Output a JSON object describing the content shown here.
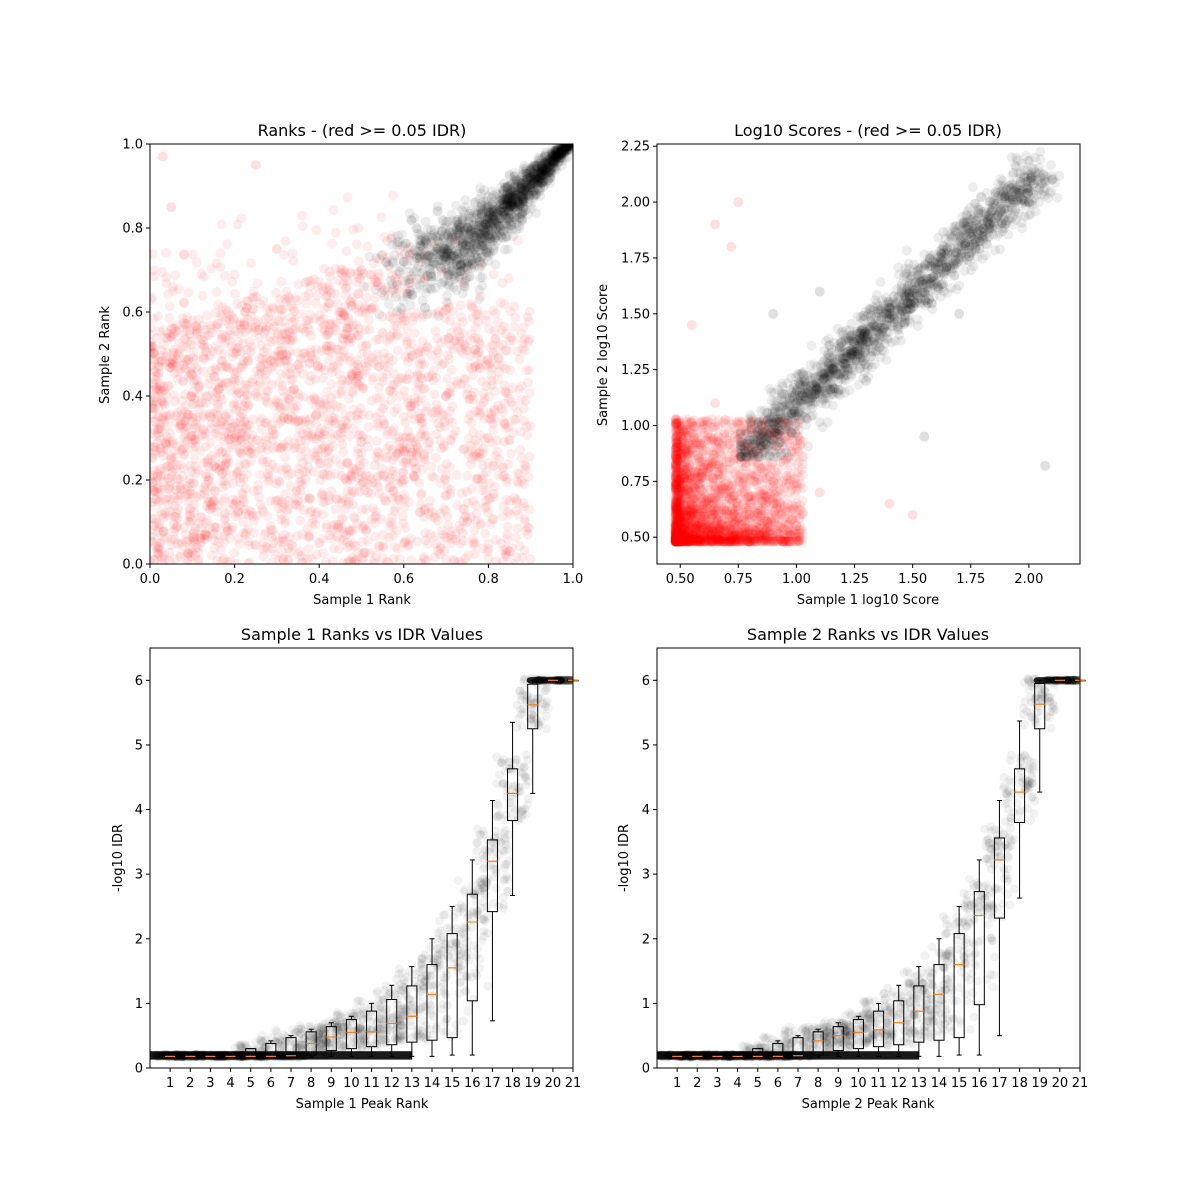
{
  "colors": {
    "significant": "#000000",
    "not_significant": "#ff0000",
    "median": "#ff7f0e",
    "box": "#000000"
  },
  "chart_data": [
    {
      "type": "scatter",
      "title": "Ranks - (red >= 0.05 IDR)",
      "xlabel": "Sample 1 Rank",
      "ylabel": "Sample 2 Rank",
      "xlim": [
        0,
        1
      ],
      "ylim": [
        0,
        1
      ],
      "xticks": [
        "0.0",
        "0.2",
        "0.4",
        "0.6",
        "0.8",
        "1.0"
      ],
      "yticks": [
        "0.0",
        "0.2",
        "0.4",
        "0.6",
        "0.8",
        "1.0"
      ],
      "grid": false,
      "series": [
        {
          "color": "not_significant",
          "points": [
            [
              0.05,
              0.85
            ],
            [
              0.1,
              0.45
            ],
            [
              0.2,
              0.3
            ],
            [
              0.35,
              0.34
            ],
            [
              0.45,
              0.6
            ],
            [
              0.6,
              0.2
            ],
            [
              0.75,
              0.1
            ],
            [
              0.85,
              0.03
            ],
            [
              0.3,
              0.75
            ],
            [
              0.55,
              0.55
            ],
            [
              0.7,
              0.4
            ],
            [
              0.15,
              0.15
            ],
            [
              0.25,
              0.95
            ],
            [
              0.03,
              0.97
            ],
            [
              0.5,
              0.7
            ],
            [
              0.65,
              0.68
            ],
            [
              0.8,
              0.3
            ],
            [
              0.4,
              0.05
            ]
          ]
        },
        {
          "color": "significant",
          "points": [
            [
              0.62,
              0.64
            ],
            [
              0.65,
              0.61
            ],
            [
              0.7,
              0.75
            ],
            [
              0.75,
              0.8
            ],
            [
              0.8,
              0.85
            ],
            [
              0.85,
              0.88
            ],
            [
              0.9,
              0.92
            ],
            [
              0.95,
              0.96
            ],
            [
              1.0,
              1.0
            ],
            [
              0.6,
              0.72
            ],
            [
              0.72,
              0.68
            ],
            [
              0.68,
              0.84
            ],
            [
              0.78,
              0.72
            ],
            [
              0.88,
              0.82
            ]
          ]
        }
      ]
    },
    {
      "type": "scatter",
      "title": "Log10 Scores - (red >= 0.05 IDR)",
      "xlabel": "Sample 1 log10 Score",
      "ylabel": "Sample 2 log10 Score",
      "xlim": [
        0.4,
        2.22
      ],
      "ylim": [
        0.38,
        2.26
      ],
      "xticks": [
        "0.50",
        "0.75",
        "1.00",
        "1.25",
        "1.50",
        "1.75",
        "2.00"
      ],
      "yticks": [
        "0.50",
        "0.75",
        "1.00",
        "1.25",
        "1.50",
        "1.75",
        "2.00",
        "2.25"
      ],
      "grid": false,
      "series": [
        {
          "color": "not_significant",
          "points": [
            [
              0.48,
              0.48
            ],
            [
              0.55,
              0.6
            ],
            [
              0.6,
              0.8
            ],
            [
              0.65,
              1.1
            ],
            [
              0.7,
              0.55
            ],
            [
              0.8,
              0.6
            ],
            [
              0.9,
              0.75
            ],
            [
              1.0,
              0.55
            ],
            [
              1.1,
              0.7
            ],
            [
              1.4,
              0.65
            ],
            [
              0.55,
              1.45
            ],
            [
              0.65,
              1.9
            ],
            [
              0.72,
              1.8
            ],
            [
              0.75,
              2.0
            ],
            [
              1.5,
              0.6
            ]
          ]
        },
        {
          "color": "significant",
          "points": [
            [
              0.78,
              0.88
            ],
            [
              0.85,
              1.0
            ],
            [
              1.0,
              1.1
            ],
            [
              1.2,
              1.3
            ],
            [
              1.4,
              1.5
            ],
            [
              1.6,
              1.7
            ],
            [
              1.8,
              1.85
            ],
            [
              2.0,
              2.0
            ],
            [
              2.1,
              2.1
            ],
            [
              0.9,
              1.5
            ],
            [
              1.1,
              1.6
            ],
            [
              1.3,
              1.2
            ],
            [
              1.7,
              1.5
            ],
            [
              2.07,
              0.82
            ],
            [
              1.55,
              0.95
            ]
          ]
        }
      ]
    },
    {
      "type": "box",
      "title": "Sample 1 Ranks vs IDR Values",
      "xlabel": "Sample 1 Peak Rank",
      "ylabel": "-log10 IDR",
      "ylim": [
        0,
        6.5
      ],
      "xticks": [
        "1",
        "2",
        "3",
        "4",
        "5",
        "6",
        "7",
        "8",
        "9",
        "10",
        "11",
        "12",
        "13",
        "14",
        "15",
        "16",
        "17",
        "18",
        "19",
        "20",
        "21"
      ],
      "yticks": [
        "0",
        "1",
        "2",
        "3",
        "4",
        "5",
        "6"
      ],
      "grid": false,
      "boxes": [
        {
          "q1": 0.17,
          "median": 0.18,
          "q3": 0.2,
          "whislo": 0.16,
          "whishi": 0.21
        },
        {
          "q1": 0.17,
          "median": 0.18,
          "q3": 0.2,
          "whislo": 0.16,
          "whishi": 0.21
        },
        {
          "q1": 0.17,
          "median": 0.18,
          "q3": 0.2,
          "whislo": 0.16,
          "whishi": 0.21
        },
        {
          "q1": 0.17,
          "median": 0.18,
          "q3": 0.2,
          "whislo": 0.16,
          "whishi": 0.21
        },
        {
          "q1": 0.17,
          "median": 0.18,
          "q3": 0.3,
          "whislo": 0.16,
          "whishi": 0.3
        },
        {
          "q1": 0.17,
          "median": 0.18,
          "q3": 0.38,
          "whislo": 0.16,
          "whishi": 0.42
        },
        {
          "q1": 0.17,
          "median": 0.19,
          "q3": 0.47,
          "whislo": 0.16,
          "whishi": 0.5
        },
        {
          "q1": 0.2,
          "median": 0.38,
          "q3": 0.56,
          "whislo": 0.17,
          "whishi": 0.6
        },
        {
          "q1": 0.27,
          "median": 0.48,
          "q3": 0.64,
          "whislo": 0.18,
          "whishi": 0.7
        },
        {
          "q1": 0.3,
          "median": 0.55,
          "q3": 0.75,
          "whislo": 0.18,
          "whishi": 0.8
        },
        {
          "q1": 0.33,
          "median": 0.56,
          "q3": 0.88,
          "whislo": 0.18,
          "whishi": 1.0
        },
        {
          "q1": 0.36,
          "median": 0.69,
          "q3": 1.06,
          "whislo": 0.18,
          "whishi": 1.28
        },
        {
          "q1": 0.4,
          "median": 0.8,
          "q3": 1.27,
          "whislo": 0.18,
          "whishi": 1.57
        },
        {
          "q1": 0.43,
          "median": 1.14,
          "q3": 1.6,
          "whislo": 0.18,
          "whishi": 2.0
        },
        {
          "q1": 0.47,
          "median": 1.55,
          "q3": 2.08,
          "whislo": 0.2,
          "whishi": 2.5
        },
        {
          "q1": 1.04,
          "median": 2.26,
          "q3": 2.69,
          "whislo": 0.2,
          "whishi": 3.22
        },
        {
          "q1": 2.42,
          "median": 3.2,
          "q3": 3.53,
          "whislo": 0.73,
          "whishi": 4.14
        },
        {
          "q1": 3.83,
          "median": 4.25,
          "q3": 4.63,
          "whislo": 2.67,
          "whishi": 5.35
        },
        {
          "q1": 5.25,
          "median": 5.62,
          "q3": 5.94,
          "whislo": 4.25,
          "whishi": 6.0
        },
        {
          "q1": 6.0,
          "median": 6.0,
          "q3": 6.0,
          "whislo": 6.0,
          "whishi": 6.0
        },
        {
          "q1": 6.0,
          "median": 6.0,
          "q3": 6.0,
          "whislo": 6.0,
          "whishi": 6.0
        }
      ]
    },
    {
      "type": "box",
      "title": "Sample 2 Ranks vs IDR Values",
      "xlabel": "Sample 2 Peak Rank",
      "ylabel": "-log10 IDR",
      "ylim": [
        0,
        6.5
      ],
      "xticks": [
        "1",
        "2",
        "3",
        "4",
        "5",
        "6",
        "7",
        "8",
        "9",
        "10",
        "11",
        "12",
        "13",
        "14",
        "15",
        "16",
        "17",
        "18",
        "19",
        "20",
        "21"
      ],
      "yticks": [
        "0",
        "1",
        "2",
        "3",
        "4",
        "5",
        "6"
      ],
      "grid": false,
      "boxes": [
        {
          "q1": 0.17,
          "median": 0.18,
          "q3": 0.2,
          "whislo": 0.16,
          "whishi": 0.21
        },
        {
          "q1": 0.17,
          "median": 0.18,
          "q3": 0.2,
          "whislo": 0.16,
          "whishi": 0.21
        },
        {
          "q1": 0.17,
          "median": 0.18,
          "q3": 0.2,
          "whislo": 0.16,
          "whishi": 0.21
        },
        {
          "q1": 0.17,
          "median": 0.18,
          "q3": 0.2,
          "whislo": 0.16,
          "whishi": 0.21
        },
        {
          "q1": 0.17,
          "median": 0.18,
          "q3": 0.3,
          "whislo": 0.16,
          "whishi": 0.3
        },
        {
          "q1": 0.17,
          "median": 0.18,
          "q3": 0.38,
          "whislo": 0.16,
          "whishi": 0.42
        },
        {
          "q1": 0.17,
          "median": 0.19,
          "q3": 0.47,
          "whislo": 0.16,
          "whishi": 0.5
        },
        {
          "q1": 0.2,
          "median": 0.42,
          "q3": 0.56,
          "whislo": 0.17,
          "whishi": 0.6
        },
        {
          "q1": 0.27,
          "median": 0.5,
          "q3": 0.64,
          "whislo": 0.18,
          "whishi": 0.7
        },
        {
          "q1": 0.3,
          "median": 0.55,
          "q3": 0.75,
          "whislo": 0.18,
          "whishi": 0.8
        },
        {
          "q1": 0.33,
          "median": 0.59,
          "q3": 0.88,
          "whislo": 0.18,
          "whishi": 1.0
        },
        {
          "q1": 0.36,
          "median": 0.7,
          "q3": 1.04,
          "whislo": 0.18,
          "whishi": 1.28
        },
        {
          "q1": 0.4,
          "median": 0.88,
          "q3": 1.27,
          "whislo": 0.18,
          "whishi": 1.57
        },
        {
          "q1": 0.43,
          "median": 1.14,
          "q3": 1.6,
          "whislo": 0.18,
          "whishi": 2.0
        },
        {
          "q1": 0.47,
          "median": 1.6,
          "q3": 2.08,
          "whislo": 0.2,
          "whishi": 2.5
        },
        {
          "q1": 0.98,
          "median": 2.36,
          "q3": 2.73,
          "whislo": 0.2,
          "whishi": 3.22
        },
        {
          "q1": 2.32,
          "median": 3.22,
          "q3": 3.56,
          "whislo": 0.5,
          "whishi": 4.14
        },
        {
          "q1": 3.8,
          "median": 4.27,
          "q3": 4.63,
          "whislo": 2.63,
          "whishi": 5.37
        },
        {
          "q1": 5.25,
          "median": 5.63,
          "q3": 5.95,
          "whislo": 4.27,
          "whishi": 6.0
        },
        {
          "q1": 6.0,
          "median": 6.0,
          "q3": 6.0,
          "whislo": 6.0,
          "whishi": 6.0
        },
        {
          "q1": 6.0,
          "median": 6.0,
          "q3": 6.0,
          "whislo": 6.0,
          "whishi": 6.0
        }
      ]
    }
  ]
}
